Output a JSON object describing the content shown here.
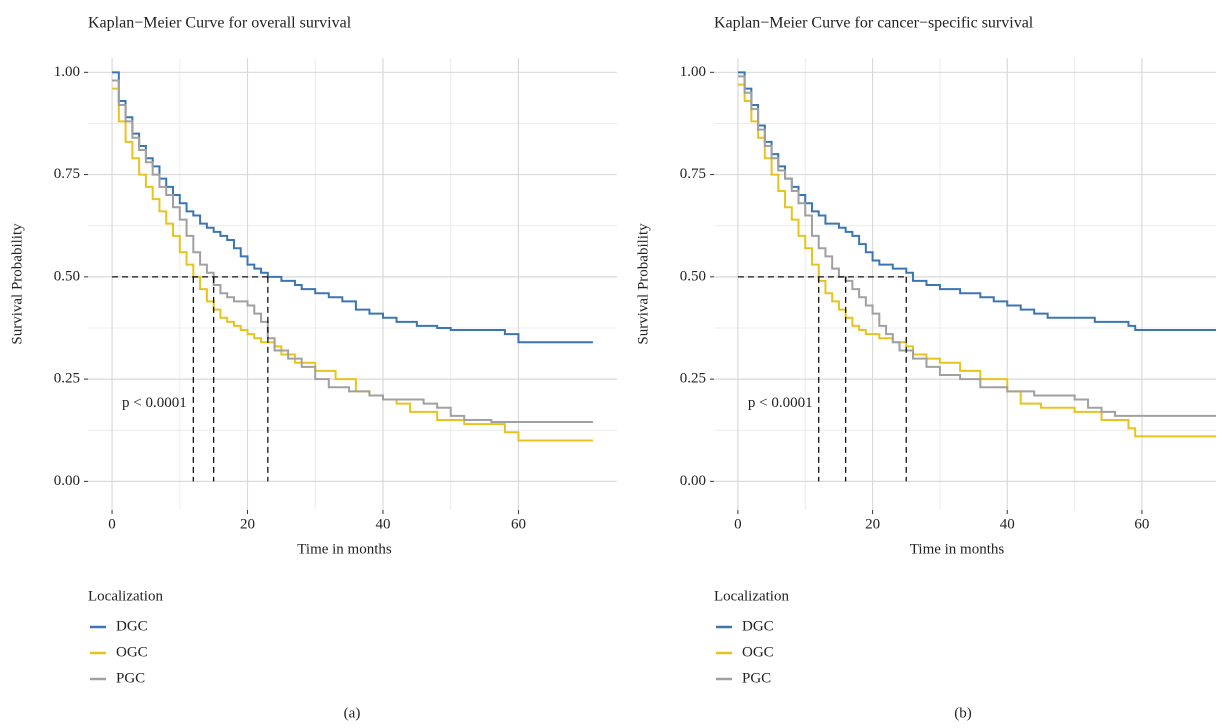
{
  "chart_data": [
    {
      "type": "step",
      "title": "Kaplan−Meier Curve for overall survival",
      "x_label": "Time in months",
      "y_label": "Survival Probability",
      "caption": "(a)",
      "legend_title": "Localization",
      "annotation": "p < 0.0001",
      "xlim": [
        -3.55,
        74.55
      ],
      "ylim": [
        -0.07,
        1.035
      ],
      "xticks": [
        0,
        20,
        40,
        60
      ],
      "yticks": [
        {
          "value": 0,
          "label": "0.00"
        },
        {
          "value": 0.25,
          "label": "0.25"
        },
        {
          "value": 0.5,
          "label": "0.50"
        },
        {
          "value": 0.75,
          "label": "0.75"
        },
        {
          "value": 1,
          "label": "1.00"
        }
      ],
      "grid": true,
      "minor_grid": true,
      "median_level": 0.5,
      "medians": [
        12,
        15,
        23
      ],
      "series": [
        {
          "name": "DGC",
          "color": "#3b75b4",
          "x": [
            0,
            1,
            2,
            3,
            4,
            5,
            6,
            7,
            8,
            9,
            10,
            11,
            12,
            13,
            14,
            15,
            16,
            17,
            18,
            19,
            20,
            21,
            22,
            23,
            25,
            27,
            28,
            30,
            32,
            34,
            36,
            38,
            40,
            42,
            45,
            48,
            50,
            58,
            60,
            71
          ],
          "values": [
            1,
            0.93,
            0.89,
            0.85,
            0.82,
            0.79,
            0.77,
            0.74,
            0.72,
            0.7,
            0.68,
            0.66,
            0.65,
            0.63,
            0.62,
            0.61,
            0.6,
            0.59,
            0.57,
            0.55,
            0.53,
            0.52,
            0.51,
            0.5,
            0.49,
            0.48,
            0.47,
            0.46,
            0.45,
            0.44,
            0.42,
            0.41,
            0.4,
            0.39,
            0.38,
            0.375,
            0.37,
            0.36,
            0.34,
            0.34
          ]
        },
        {
          "name": "OGC",
          "color": "#e8c31e",
          "x": [
            0,
            1,
            2,
            3,
            4,
            5,
            6,
            7,
            8,
            9,
            10,
            11,
            12,
            13,
            14,
            15,
            16,
            17,
            18,
            19,
            20,
            21,
            22,
            24,
            25,
            27,
            30,
            33,
            36,
            38,
            40,
            42,
            44,
            48,
            52,
            58,
            60,
            71
          ],
          "values": [
            0.96,
            0.88,
            0.83,
            0.79,
            0.75,
            0.72,
            0.69,
            0.66,
            0.63,
            0.6,
            0.56,
            0.53,
            0.5,
            0.47,
            0.44,
            0.42,
            0.4,
            0.39,
            0.38,
            0.37,
            0.36,
            0.35,
            0.34,
            0.33,
            0.31,
            0.29,
            0.27,
            0.25,
            0.22,
            0.21,
            0.2,
            0.19,
            0.17,
            0.15,
            0.14,
            0.12,
            0.1,
            0.1
          ]
        },
        {
          "name": "PGC",
          "color": "#a0a0a0",
          "x": [
            0,
            1,
            2,
            3,
            4,
            5,
            6,
            7,
            8,
            9,
            10,
            11,
            12,
            13,
            14,
            15,
            16,
            17,
            18,
            20,
            21,
            22,
            23,
            24,
            26,
            28,
            30,
            32,
            35,
            38,
            40,
            46,
            48,
            50,
            52,
            56,
            71
          ],
          "values": [
            0.98,
            0.92,
            0.88,
            0.84,
            0.81,
            0.78,
            0.75,
            0.72,
            0.7,
            0.67,
            0.64,
            0.6,
            0.56,
            0.53,
            0.51,
            0.48,
            0.46,
            0.45,
            0.44,
            0.43,
            0.41,
            0.39,
            0.35,
            0.32,
            0.3,
            0.28,
            0.25,
            0.23,
            0.22,
            0.21,
            0.2,
            0.19,
            0.18,
            0.16,
            0.15,
            0.145,
            0.145
          ]
        }
      ]
    },
    {
      "type": "step",
      "title": "Kaplan−Meier Curve for cancer−specific survival",
      "x_label": "Time in months",
      "y_label": "Survival Probability",
      "caption": "(b)",
      "legend_title": "Localization",
      "annotation": "p < 0.0001",
      "xlim": [
        -3.55,
        71
      ],
      "ylim": [
        -0.07,
        1.035
      ],
      "xticks": [
        0,
        20,
        40,
        60
      ],
      "yticks": [
        {
          "value": 0,
          "label": "0.00"
        },
        {
          "value": 0.25,
          "label": "0.25"
        },
        {
          "value": 0.5,
          "label": "0.50"
        },
        {
          "value": 0.75,
          "label": "0.75"
        },
        {
          "value": 1,
          "label": "1.00"
        }
      ],
      "grid": true,
      "minor_grid": true,
      "median_level": 0.5,
      "medians": [
        12,
        16,
        25
      ],
      "series": [
        {
          "name": "DGC",
          "color": "#3b75b4",
          "x": [
            0,
            1,
            2,
            3,
            4,
            5,
            6,
            7,
            8,
            9,
            10,
            11,
            12,
            13,
            15,
            16,
            17,
            18,
            19,
            20,
            21,
            23,
            25,
            26,
            28,
            30,
            33,
            36,
            38,
            40,
            42,
            44,
            46,
            53,
            58,
            59,
            71
          ],
          "values": [
            1,
            0.96,
            0.92,
            0.87,
            0.83,
            0.8,
            0.77,
            0.74,
            0.72,
            0.7,
            0.68,
            0.66,
            0.65,
            0.63,
            0.62,
            0.61,
            0.6,
            0.58,
            0.56,
            0.54,
            0.53,
            0.52,
            0.51,
            0.49,
            0.48,
            0.47,
            0.46,
            0.45,
            0.44,
            0.43,
            0.42,
            0.41,
            0.4,
            0.39,
            0.38,
            0.37,
            0.37
          ]
        },
        {
          "name": "OGC",
          "color": "#e8c31e",
          "x": [
            0,
            1,
            2,
            3,
            4,
            5,
            6,
            7,
            8,
            9,
            10,
            11,
            12,
            13,
            14,
            15,
            16,
            17,
            18,
            19,
            21,
            23,
            25,
            26,
            28,
            30,
            33,
            36,
            40,
            42,
            45,
            50,
            54,
            58,
            59,
            71
          ],
          "values": [
            0.97,
            0.93,
            0.88,
            0.84,
            0.79,
            0.75,
            0.71,
            0.67,
            0.64,
            0.6,
            0.57,
            0.53,
            0.49,
            0.46,
            0.44,
            0.42,
            0.4,
            0.38,
            0.37,
            0.36,
            0.35,
            0.34,
            0.33,
            0.31,
            0.3,
            0.29,
            0.27,
            0.25,
            0.22,
            0.19,
            0.18,
            0.17,
            0.15,
            0.13,
            0.11,
            0.11
          ]
        },
        {
          "name": "PGC",
          "color": "#a0a0a0",
          "x": [
            0,
            1,
            2,
            3,
            4,
            5,
            6,
            7,
            8,
            9,
            10,
            11,
            12,
            13,
            14,
            15,
            16,
            17,
            18,
            19,
            20,
            21,
            22,
            23,
            24,
            26,
            28,
            30,
            33,
            36,
            40,
            44,
            50,
            52,
            54,
            56,
            71
          ],
          "values": [
            0.99,
            0.95,
            0.91,
            0.86,
            0.82,
            0.79,
            0.76,
            0.74,
            0.71,
            0.68,
            0.65,
            0.6,
            0.57,
            0.55,
            0.52,
            0.5,
            0.49,
            0.47,
            0.45,
            0.43,
            0.41,
            0.38,
            0.36,
            0.34,
            0.32,
            0.3,
            0.28,
            0.26,
            0.25,
            0.23,
            0.22,
            0.21,
            0.2,
            0.18,
            0.17,
            0.16,
            0.16
          ]
        }
      ]
    }
  ]
}
